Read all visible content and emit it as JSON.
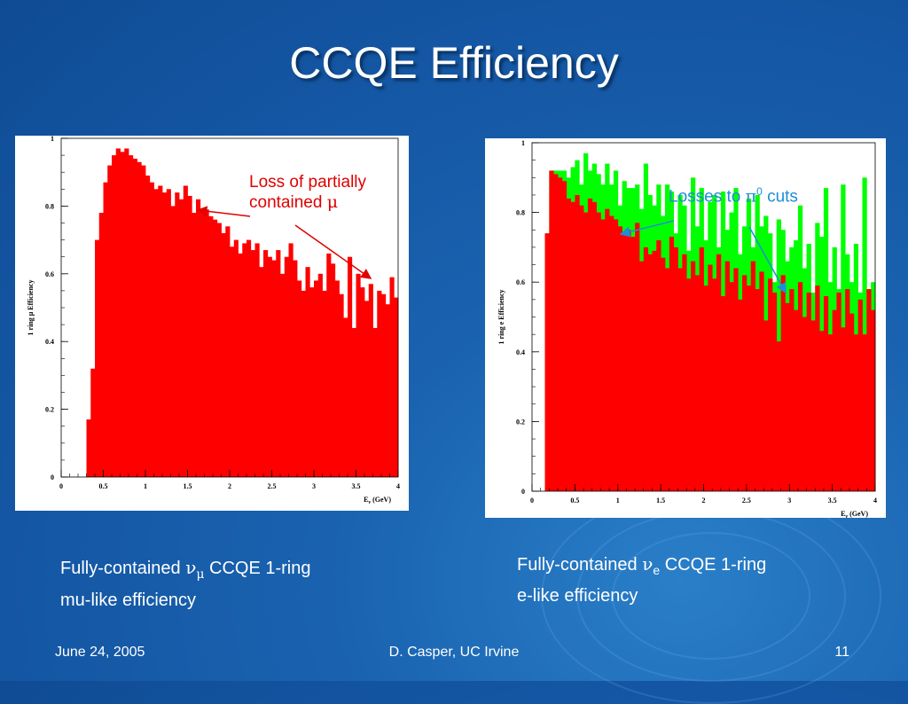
{
  "slide": {
    "title": "CCQE Efficiency",
    "footer_date": "June 24, 2005",
    "footer_author": "D. Casper, UC Irvine",
    "footer_page": "11"
  },
  "annotations": {
    "left_line1": "Loss of partially",
    "left_line2_text": "contained ",
    "left_line2_symbol": "μ",
    "right_text": "Losses to ",
    "right_symbol": "π",
    "right_sup": "0",
    "right_suffix": " cuts"
  },
  "captions": {
    "left_prefix": "Fully-contained ",
    "left_nu": "ν",
    "left_sub": "μ",
    "left_suffix": " CCQE 1-ring",
    "left_line2": "mu-like efficiency",
    "right_prefix": "Fully-contained ",
    "right_nu": "ν",
    "right_sub": "e",
    "right_suffix": " CCQE 1-ring",
    "right_line2": "e-like efficiency"
  },
  "colors": {
    "primary_fill": "#ff0000",
    "secondary_fill": "#00ff00",
    "annotation_left": "#e00000",
    "annotation_right": "#1e8fd6"
  },
  "chart_data": [
    {
      "type": "bar",
      "title": "",
      "xlabel_main": "E",
      "xlabel_sub": "ν",
      "xlabel_unit": " (GeV)",
      "ylabel": "1 ring μ Efficiency",
      "xlim": [
        0,
        4
      ],
      "ylim": [
        0,
        1.0
      ],
      "xticks": [
        "0",
        "0.5",
        "1",
        "1.5",
        "2",
        "2.5",
        "3",
        "3.5",
        "4"
      ],
      "yticks": [
        "0",
        "0.2",
        "0.4",
        "0.6",
        "0.8",
        "1"
      ],
      "bin_width": 0.05,
      "series": [
        {
          "values": [
            0,
            0,
            0,
            0,
            0,
            0,
            0.17,
            0.32,
            0.7,
            0.78,
            0.87,
            0.92,
            0.95,
            0.97,
            0.96,
            0.97,
            0.95,
            0.94,
            0.93,
            0.92,
            0.89,
            0.87,
            0.85,
            0.86,
            0.84,
            0.85,
            0.8,
            0.84,
            0.82,
            0.86,
            0.83,
            0.78,
            0.82,
            0.78,
            0.79,
            0.77,
            0.76,
            0.75,
            0.72,
            0.74,
            0.68,
            0.7,
            0.66,
            0.69,
            0.7,
            0.67,
            0.69,
            0.62,
            0.67,
            0.65,
            0.64,
            0.67,
            0.6,
            0.65,
            0.69,
            0.64,
            0.58,
            0.55,
            0.62,
            0.56,
            0.58,
            0.6,
            0.55,
            0.66,
            0.63,
            0.58,
            0.54,
            0.47,
            0.65,
            0.44,
            0.6,
            0.56,
            0.52,
            0.57,
            0.44,
            0.55,
            0.54,
            0.51,
            0.59,
            0.53
          ]
        }
      ]
    },
    {
      "type": "bar",
      "title": "",
      "xlabel_main": "E",
      "xlabel_sub": "ν",
      "xlabel_unit": " (GeV)",
      "ylabel": "1 ring e Efficiency",
      "xlim": [
        0,
        4
      ],
      "ylim": [
        0,
        1.0
      ],
      "xticks": [
        "0",
        "0.5",
        "1",
        "1.5",
        "2",
        "2.5",
        "3",
        "3.5",
        "4"
      ],
      "yticks": [
        "0",
        "0.2",
        "0.4",
        "0.6",
        "0.8",
        "1"
      ],
      "bin_width": 0.05,
      "series": [
        {
          "values": [
            0,
            0,
            0,
            0.74,
            0.92,
            0.91,
            0.9,
            0.89,
            0.84,
            0.83,
            0.85,
            0.82,
            0.8,
            0.84,
            0.83,
            0.8,
            0.78,
            0.81,
            0.79,
            0.78,
            0.76,
            0.74,
            0.75,
            0.73,
            0.77,
            0.66,
            0.7,
            0.68,
            0.69,
            0.72,
            0.67,
            0.64,
            0.73,
            0.7,
            0.64,
            0.68,
            0.61,
            0.66,
            0.62,
            0.7,
            0.59,
            0.65,
            0.61,
            0.68,
            0.56,
            0.66,
            0.6,
            0.64,
            0.55,
            0.62,
            0.59,
            0.66,
            0.58,
            0.63,
            0.49,
            0.61,
            0.57,
            0.43,
            0.62,
            0.54,
            0.58,
            0.52,
            0.6,
            0.5,
            0.57,
            0.49,
            0.59,
            0.46,
            0.56,
            0.45,
            0.52,
            0.57,
            0.47,
            0.58,
            0.51,
            0.45,
            0.55,
            0.45,
            0.58,
            0.52
          ]
        },
        {
          "values": [
            0,
            0,
            0,
            0.74,
            0.92,
            0.92,
            0.92,
            0.92,
            0.9,
            0.93,
            0.95,
            0.88,
            0.97,
            0.92,
            0.94,
            0.91,
            0.88,
            0.94,
            0.88,
            0.92,
            0.82,
            0.89,
            0.87,
            0.87,
            0.88,
            0.81,
            0.94,
            0.85,
            0.82,
            0.88,
            0.79,
            0.88,
            0.86,
            0.74,
            0.85,
            0.82,
            0.69,
            0.9,
            0.76,
            0.87,
            0.72,
            0.83,
            0.85,
            0.7,
            0.86,
            0.75,
            0.8,
            0.87,
            0.68,
            0.76,
            0.84,
            0.7,
            0.85,
            0.76,
            0.79,
            0.74,
            0.6,
            0.78,
            0.75,
            0.66,
            0.7,
            0.72,
            0.82,
            0.64,
            0.71,
            0.57,
            0.77,
            0.73,
            0.87,
            0.6,
            0.7,
            0.58,
            0.88,
            0.68,
            0.6,
            0.71,
            0.57,
            0.9,
            0.53,
            0.6
          ]
        }
      ]
    }
  ]
}
